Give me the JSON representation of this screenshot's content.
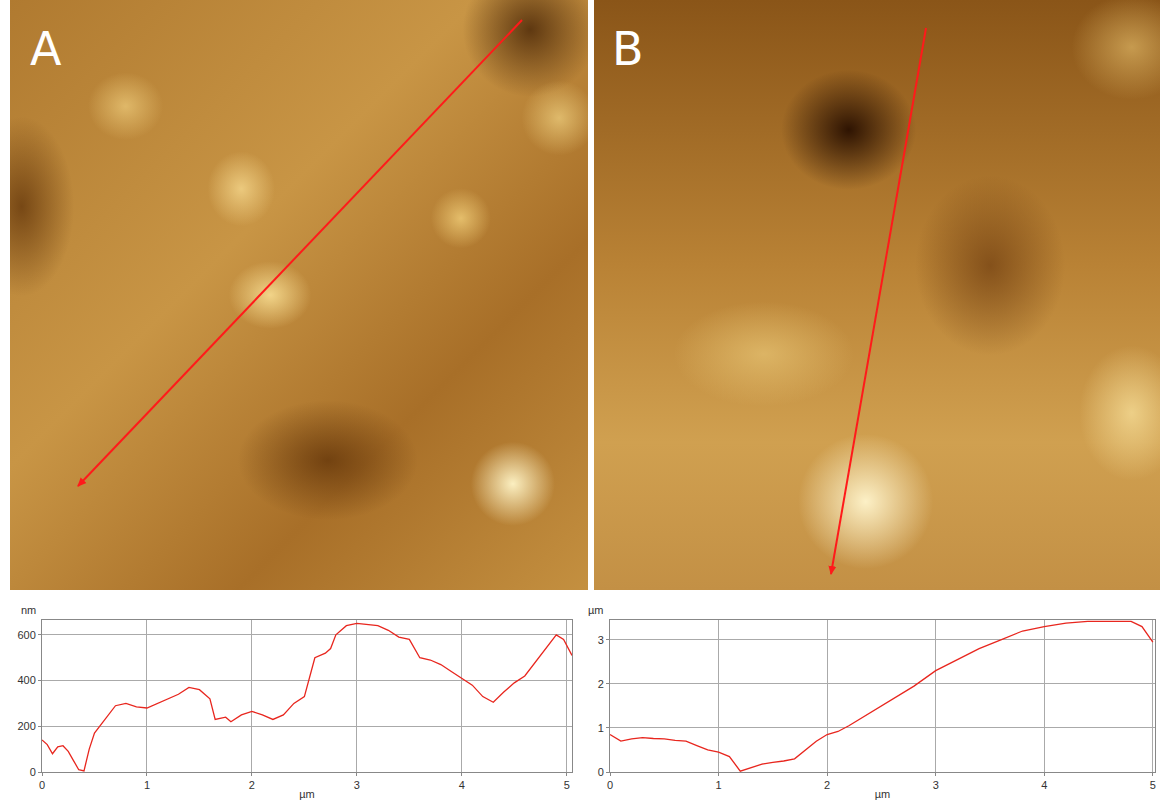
{
  "chart_data": [
    {
      "type": "line",
      "annotations": [
        "A"
      ],
      "ylabel": "nm",
      "xlabel": "µm",
      "color": "#e8261e",
      "grid": true,
      "xlim": [
        0,
        5.05
      ],
      "xticks": [
        0,
        1,
        2,
        3,
        4,
        5
      ],
      "ylim": [
        0,
        665
      ],
      "yticks": [
        0,
        200,
        400,
        600
      ],
      "x": [
        0,
        0.05,
        0.1,
        0.15,
        0.2,
        0.25,
        0.3,
        0.35,
        0.4,
        0.45,
        0.5,
        0.6,
        0.7,
        0.8,
        0.9,
        1.0,
        1.1,
        1.2,
        1.3,
        1.4,
        1.5,
        1.6,
        1.65,
        1.75,
        1.8,
        1.9,
        2.0,
        2.1,
        2.2,
        2.3,
        2.4,
        2.5,
        2.6,
        2.7,
        2.75,
        2.8,
        2.9,
        3.0,
        3.1,
        3.2,
        3.3,
        3.4,
        3.5,
        3.6,
        3.7,
        3.8,
        3.9,
        4.0,
        4.1,
        4.2,
        4.3,
        4.4,
        4.5,
        4.6,
        4.7,
        4.8,
        4.9,
        4.97,
        5.05
      ],
      "values": [
        140,
        120,
        80,
        110,
        115,
        90,
        50,
        10,
        5,
        100,
        170,
        230,
        290,
        300,
        285,
        280,
        300,
        320,
        340,
        370,
        360,
        320,
        230,
        240,
        220,
        250,
        265,
        250,
        230,
        250,
        300,
        330,
        500,
        520,
        540,
        600,
        640,
        650,
        645,
        640,
        620,
        590,
        580,
        500,
        490,
        470,
        440,
        410,
        380,
        330,
        305,
        350,
        390,
        420,
        480,
        540,
        600,
        580,
        510
      ]
    },
    {
      "type": "line",
      "annotations": [
        "B"
      ],
      "ylabel": "µm",
      "xlabel": "µm",
      "color": "#e8261e",
      "grid": true,
      "xlim": [
        0,
        5.02
      ],
      "xticks": [
        0,
        1,
        2,
        3,
        4,
        5
      ],
      "ylim": [
        0,
        3.45
      ],
      "yticks": [
        0,
        1,
        2,
        3
      ],
      "x": [
        0,
        0.1,
        0.2,
        0.3,
        0.4,
        0.5,
        0.6,
        0.7,
        0.8,
        0.9,
        1.0,
        1.1,
        1.2,
        1.3,
        1.4,
        1.5,
        1.6,
        1.7,
        1.8,
        1.9,
        2.0,
        2.1,
        2.2,
        2.4,
        2.6,
        2.8,
        3.0,
        3.2,
        3.4,
        3.6,
        3.8,
        4.0,
        4.2,
        4.4,
        4.6,
        4.8,
        4.9,
        5.0
      ],
      "values": [
        0.85,
        0.7,
        0.75,
        0.78,
        0.76,
        0.75,
        0.72,
        0.7,
        0.6,
        0.5,
        0.45,
        0.35,
        0.02,
        0.1,
        0.18,
        0.22,
        0.25,
        0.3,
        0.5,
        0.7,
        0.85,
        0.92,
        1.05,
        1.35,
        1.65,
        1.95,
        2.3,
        2.55,
        2.8,
        3.0,
        3.2,
        3.3,
        3.38,
        3.42,
        3.42,
        3.42,
        3.3,
        2.95
      ]
    }
  ]
}
